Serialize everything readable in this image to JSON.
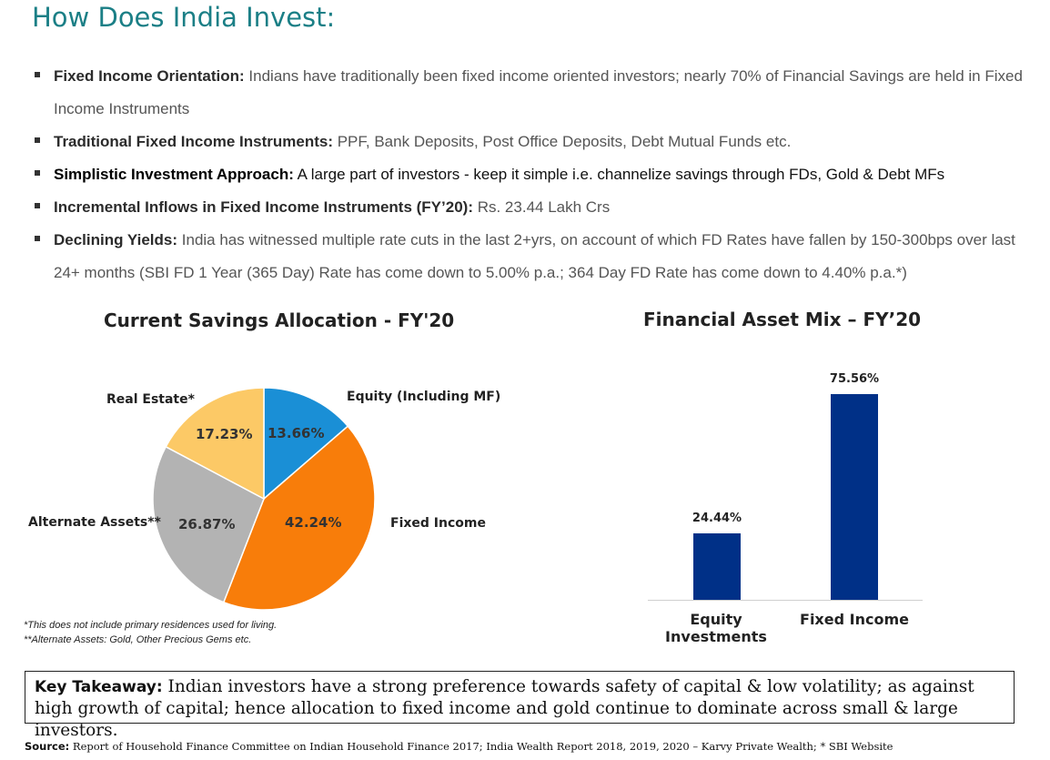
{
  "title": "How Does India Invest:",
  "bullets": [
    {
      "head": "Fixed Income Orientation:",
      "text": " Indians have traditionally been fixed income oriented investors; nearly 70% of Financial Savings are held in Fixed Income Instruments"
    },
    {
      "head": "Traditional Fixed Income Instruments:",
      "text": " PPF, Bank Deposits, Post Office Deposits, Debt Mutual Funds etc."
    },
    {
      "head": "Simplistic Investment Approach:",
      "text": " A large part of investors - keep it simple i.e. channelize savings through FDs, Gold & Debt MFs"
    },
    {
      "head": "Incremental Inflows in Fixed Income Instruments (FY’20):",
      "text": " Rs. 23.44 Lakh Crs"
    },
    {
      "head": "Declining Yields:",
      "text": " India has witnessed multiple rate cuts in the last 2+yrs, on account of which FD Rates have fallen by 150-300bps over last 24+ months (SBI FD 1 Year (365 Day) Rate has come down to 5.00% p.a.; 364 Day FD Rate has come down to 4.40% p.a.*)"
    }
  ],
  "chart_data": [
    {
      "type": "pie",
      "title": "Current Savings Allocation - FY'20",
      "slices": [
        {
          "label": "Equity (Including MF)",
          "value": 13.66,
          "display": "13.66%",
          "color": "#1a8fd6"
        },
        {
          "label": "Fixed Income",
          "value": 42.24,
          "display": "42.24%",
          "color": "#f87d0a"
        },
        {
          "label": "Alternate Assets**",
          "value": 26.87,
          "display": "26.87%",
          "color": "#b3b3b3"
        },
        {
          "label": "Real Estate*",
          "value": 17.23,
          "display": "17.23%",
          "color": "#fcc966"
        }
      ]
    },
    {
      "type": "bar",
      "title": "Financial Asset Mix – FY’20",
      "categories": [
        "Equity Investments",
        "Fixed Income"
      ],
      "values": [
        24.44,
        75.56
      ],
      "display": [
        "24.44%",
        "75.56%"
      ],
      "color": "#003087"
    }
  ],
  "footnotes": [
    "*This does not include primary residences used for living.",
    "**Alternate Assets: Gold, Other Precious Gems etc."
  ],
  "takeaway": {
    "head": "Key Takeaway:",
    "text": " Indian investors have a strong preference towards safety of capital & low volatility; as against high growth of capital; hence allocation to fixed income and gold continue to dominate across small & large investors."
  },
  "source": {
    "head": "Source:",
    "text": " Report of Household Finance Committee on Indian Household Finance 2017; India Wealth Report 2018, 2019, 2020 – Karvy Private Wealth; * SBI Website"
  }
}
